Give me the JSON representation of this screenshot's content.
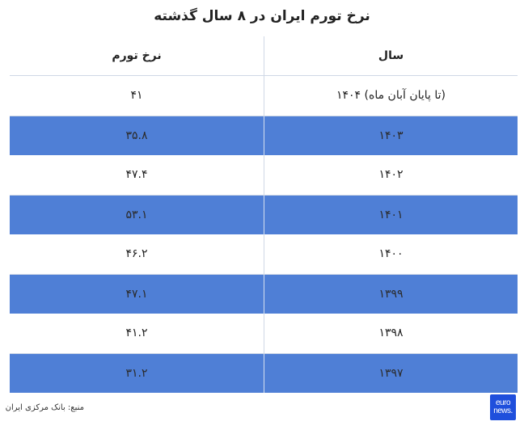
{
  "title": "نرخ تورم ایران در ۸ سال گذشته",
  "table": {
    "headers": {
      "year": "سال",
      "rate": "نرخ تورم"
    },
    "rows": [
      {
        "year": "(تا پایان آبان ماه) ۱۴۰۴",
        "rate": "۴۱"
      },
      {
        "year": "۱۴۰۳",
        "rate": "۳۵.۸"
      },
      {
        "year": "۱۴۰۲",
        "rate": "۴۷.۴"
      },
      {
        "year": "۱۴۰۱",
        "rate": "۵۳.۱"
      },
      {
        "year": "۱۴۰۰",
        "rate": "۴۶.۲"
      },
      {
        "year": "۱۳۹۹",
        "rate": "۴۷.۱"
      },
      {
        "year": "۱۳۹۸",
        "rate": "۴۱.۲"
      },
      {
        "year": "۱۳۹۷",
        "rate": "۳۱.۲"
      }
    ]
  },
  "source": "منبع: بانک مرکزی ایران",
  "logo": {
    "line1": "euro",
    "line2": "news."
  },
  "colors": {
    "row_highlight": "#4f7fd6",
    "logo_bg": "#1f4fdc",
    "divider": "#cfd8e6"
  }
}
